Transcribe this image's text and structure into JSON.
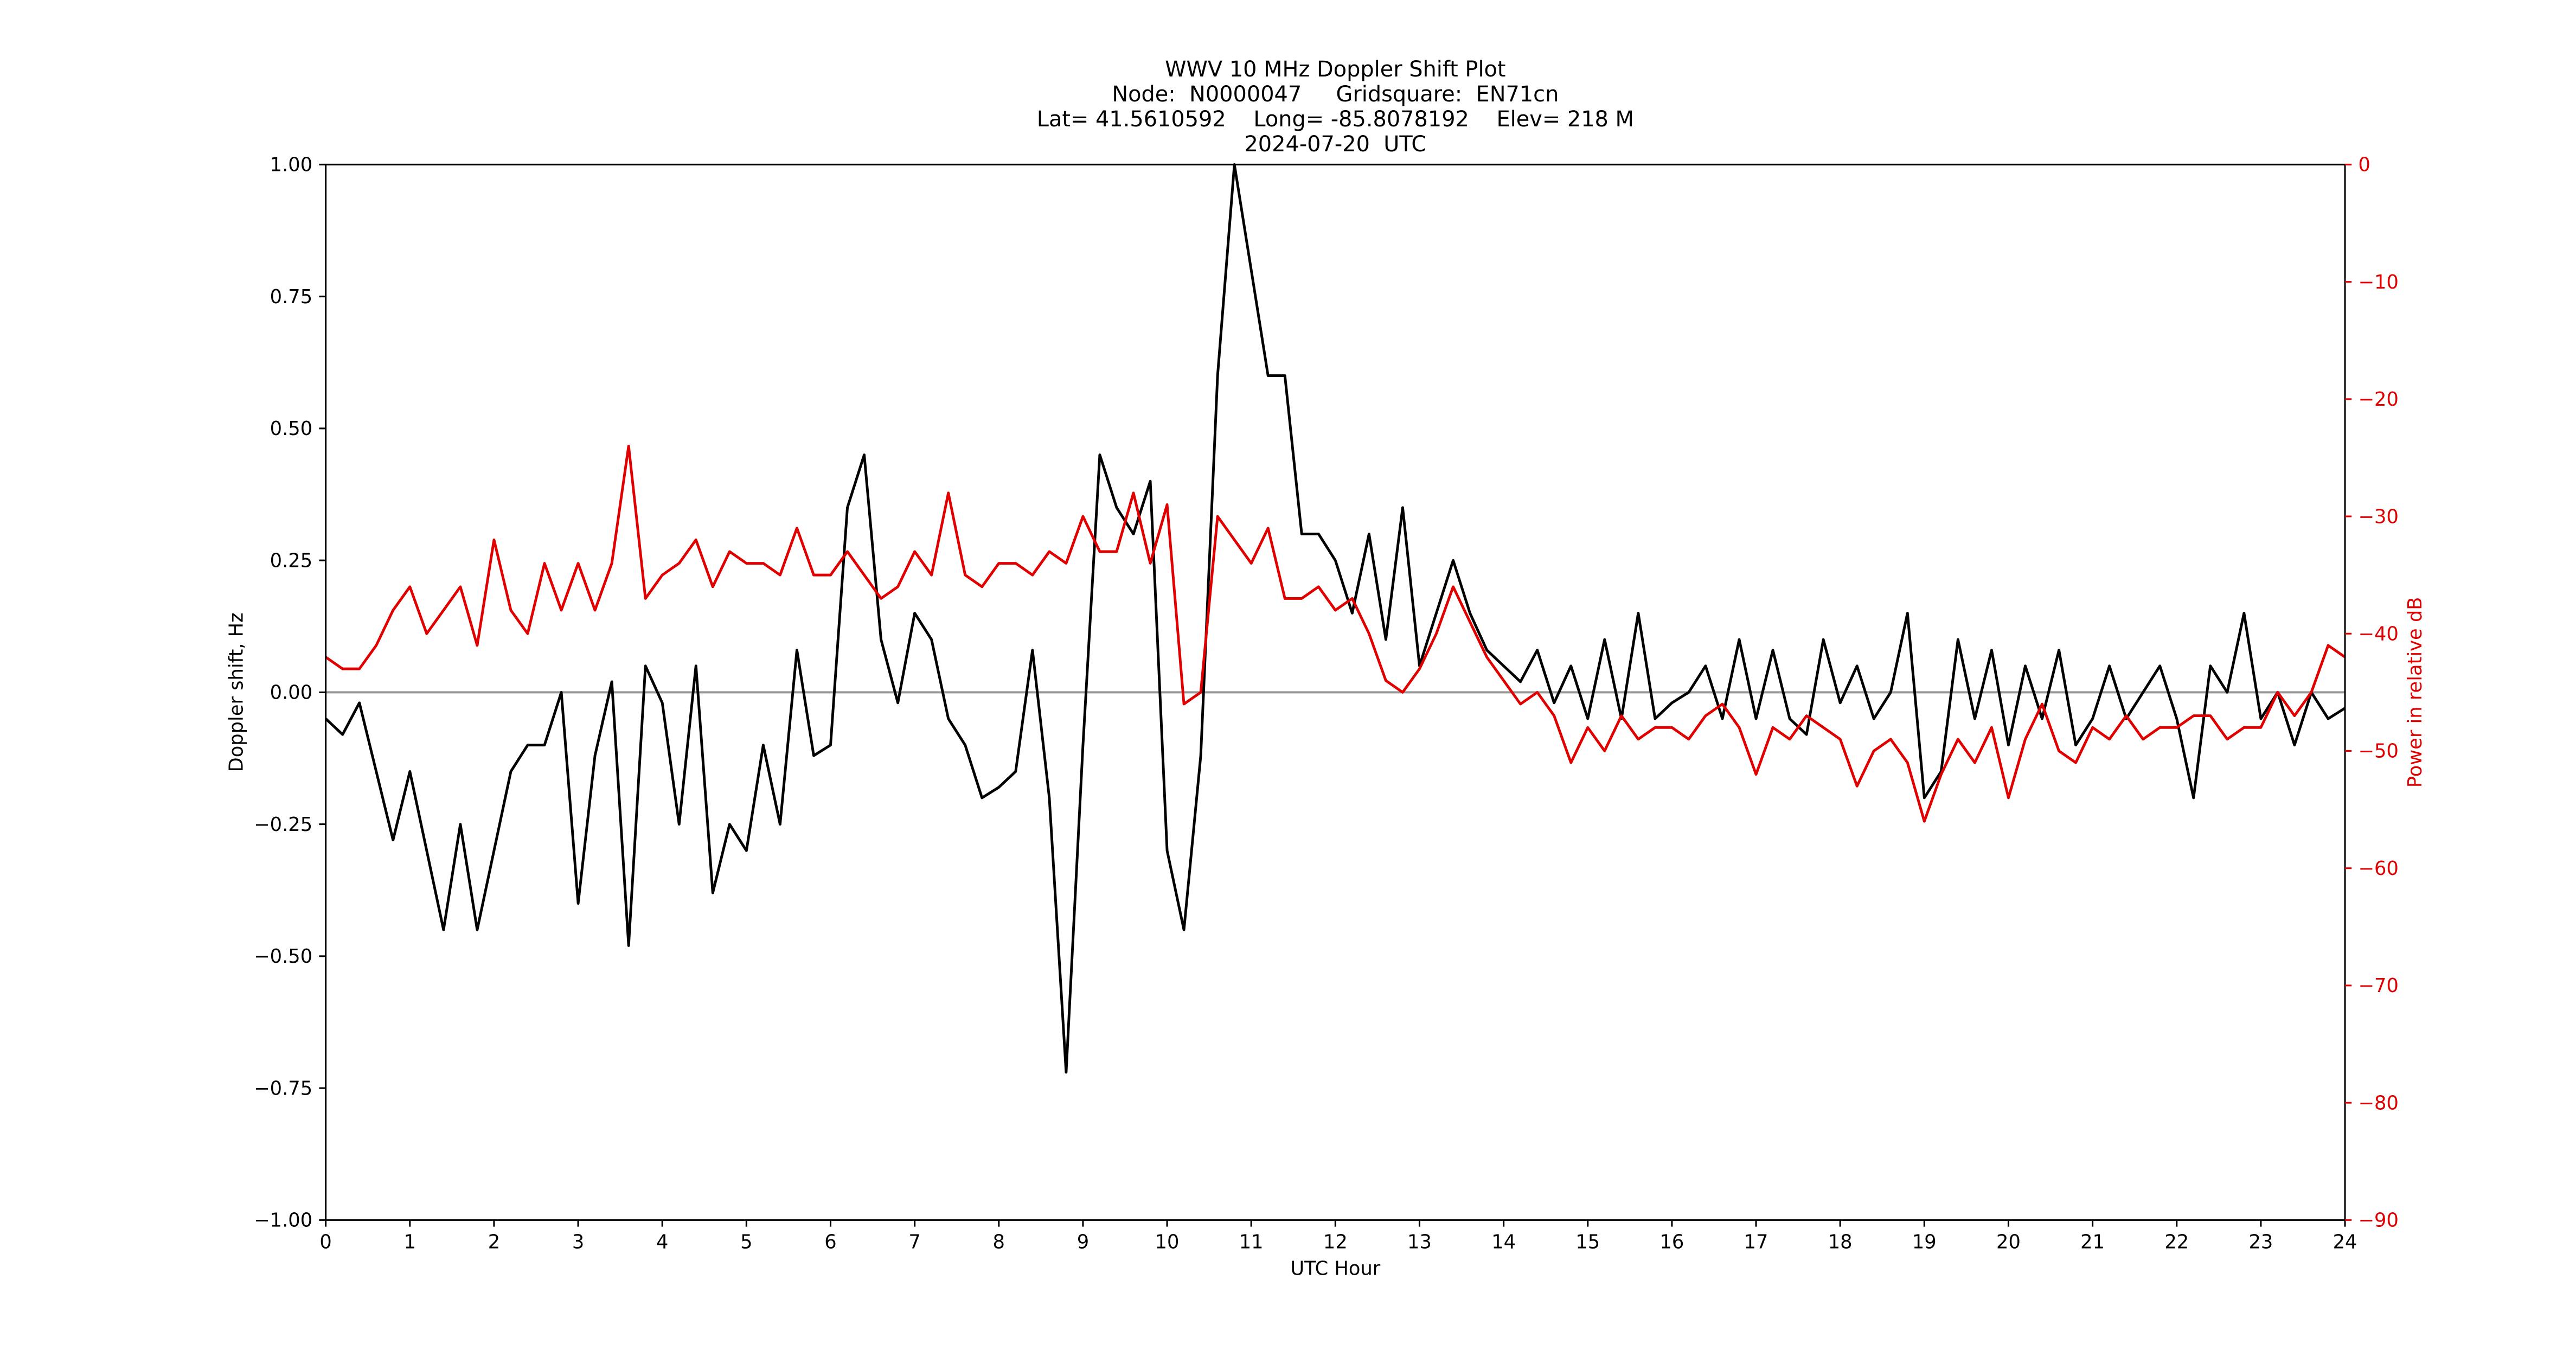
{
  "chart_data": {
    "type": "line",
    "title": [
      "WWV 10 MHz Doppler Shift Plot",
      "Node:  N0000047     Gridsquare:  EN71cn",
      "Lat= 41.5610592    Long= -85.8078192    Elev= 218 M",
      "2024-07-20  UTC"
    ],
    "xlabel": "UTC Hour",
    "ylabel": "Doppler shift, Hz",
    "y2label": "Power in relative dB",
    "xlim": [
      0,
      24
    ],
    "xticks": [
      0,
      1,
      2,
      3,
      4,
      5,
      6,
      7,
      8,
      9,
      10,
      11,
      12,
      13,
      14,
      15,
      16,
      17,
      18,
      19,
      20,
      21,
      22,
      23,
      24
    ],
    "ylim": [
      -1,
      1
    ],
    "yticks": [
      {
        "value": -1,
        "label": "−1.00"
      },
      {
        "value": -0.75,
        "label": "−0.75"
      },
      {
        "value": -0.5,
        "label": "−0.50"
      },
      {
        "value": -0.25,
        "label": "−0.25"
      },
      {
        "value": 0,
        "label": "0.00"
      },
      {
        "value": 0.25,
        "label": "0.25"
      },
      {
        "value": 0.5,
        "label": "0.50"
      },
      {
        "value": 0.75,
        "label": "0.75"
      },
      {
        "value": 1,
        "label": "1.00"
      }
    ],
    "y2lim": [
      -90,
      0
    ],
    "y2ticks": [
      {
        "value": -90,
        "label": "−90"
      },
      {
        "value": -80,
        "label": "−80"
      },
      {
        "value": -70,
        "label": "−70"
      },
      {
        "value": -60,
        "label": "−60"
      },
      {
        "value": -50,
        "label": "−50"
      },
      {
        "value": -40,
        "label": "−40"
      },
      {
        "value": -30,
        "label": "−30"
      },
      {
        "value": -20,
        "label": "−20"
      },
      {
        "value": -10,
        "label": "−10"
      },
      0
    ],
    "y2color": "#e00000",
    "hline": {
      "value": 0,
      "color": "#999999"
    },
    "x": [
      0,
      0.2,
      0.4,
      0.6,
      0.8,
      1,
      1.2,
      1.4,
      1.6,
      1.8,
      2,
      2.2,
      2.4,
      2.6,
      2.8,
      3,
      3.2,
      3.4,
      3.6,
      3.8,
      4,
      4.2,
      4.4,
      4.6,
      4.8,
      5,
      5.2,
      5.4,
      5.6,
      5.8,
      6,
      6.2,
      6.4,
      6.6,
      6.8,
      7,
      7.2,
      7.4,
      7.6,
      7.8,
      8,
      8.2,
      8.4,
      8.6,
      8.8,
      9,
      9.2,
      9.4,
      9.6,
      9.8,
      10,
      10.2,
      10.4,
      10.6,
      10.8,
      11,
      11.2,
      11.4,
      11.6,
      11.8,
      12,
      12.2,
      12.4,
      12.6,
      12.8,
      13,
      13.2,
      13.4,
      13.6,
      13.8,
      14,
      14.2,
      14.4,
      14.6,
      14.8,
      15,
      15.2,
      15.4,
      15.6,
      15.8,
      16,
      16.2,
      16.4,
      16.6,
      16.8,
      17,
      17.2,
      17.4,
      17.6,
      17.8,
      18,
      18.2,
      18.4,
      18.6,
      18.8,
      19,
      19.2,
      19.4,
      19.6,
      19.8,
      20,
      20.2,
      20.4,
      20.6,
      20.8,
      21,
      21.2,
      21.4,
      21.6,
      21.8,
      22,
      22.2,
      22.4,
      22.6,
      22.8,
      23,
      23.2,
      23.4,
      23.6,
      23.8,
      24
    ],
    "series": [
      {
        "color": "#000000",
        "values": [
          -0.05,
          -0.08,
          -0.02,
          -0.15,
          -0.28,
          -0.15,
          -0.3,
          -0.45,
          -0.25,
          -0.45,
          -0.3,
          -0.15,
          -0.1,
          -0.1,
          0.0,
          -0.4,
          -0.12,
          0.02,
          -0.48,
          0.05,
          -0.02,
          -0.25,
          0.05,
          -0.38,
          -0.25,
          -0.3,
          -0.1,
          -0.25,
          0.08,
          -0.12,
          -0.1,
          0.35,
          0.45,
          0.1,
          -0.02,
          0.15,
          0.1,
          -0.05,
          -0.1,
          -0.2,
          -0.18,
          -0.15,
          0.08,
          -0.2,
          -0.72,
          -0.1,
          0.45,
          0.35,
          0.3,
          0.4,
          -0.3,
          -0.45,
          -0.12,
          0.6,
          1.0,
          0.8,
          0.6,
          0.6,
          0.3,
          0.3,
          0.25,
          0.15,
          0.3,
          0.1,
          0.35,
          0.05,
          0.15,
          0.25,
          0.15,
          0.08,
          0.05,
          0.02,
          0.08,
          -0.02,
          0.05,
          -0.05,
          0.1,
          -0.05,
          0.15,
          -0.05,
          -0.02,
          0.0,
          0.05,
          -0.05,
          0.1,
          -0.05,
          0.08,
          -0.05,
          -0.08,
          0.1,
          -0.02,
          0.05,
          -0.05,
          0.0,
          0.15,
          -0.2,
          -0.15,
          0.1,
          -0.05,
          0.08,
          -0.1,
          0.05,
          -0.05,
          0.08,
          -0.1,
          -0.05,
          0.05,
          -0.05,
          0.0,
          0.05,
          -0.05,
          -0.2,
          0.05,
          0.0,
          0.15,
          -0.05,
          0.0,
          -0.1,
          0.0,
          -0.05,
          -0.03
        ]
      },
      {
        "color": "#e00000",
        "axis": "y2",
        "values": [
          -42,
          -43,
          -43,
          -41,
          -38,
          -36,
          -40,
          -38,
          -36,
          -41,
          -32,
          -38,
          -40,
          -34,
          -38,
          -34,
          -38,
          -34,
          -24,
          -37,
          -35,
          -34,
          -32,
          -36,
          -33,
          -34,
          -34,
          -35,
          -31,
          -35,
          -35,
          -33,
          -35,
          -37,
          -36,
          -33,
          -35,
          -28,
          -35,
          -36,
          -34,
          -34,
          -35,
          -33,
          -34,
          -30,
          -33,
          -33,
          -28,
          -34,
          -29,
          -46,
          -45,
          -30,
          -32,
          -34,
          -31,
          -37,
          -37,
          -36,
          -38,
          -37,
          -40,
          -44,
          -45,
          -43,
          -40,
          -36,
          -39,
          -42,
          -44,
          -46,
          -45,
          -47,
          -51,
          -48,
          -50,
          -47,
          -49,
          -48,
          -48,
          -49,
          -47,
          -46,
          -48,
          -52,
          -48,
          -49,
          -47,
          -48,
          -49,
          -53,
          -50,
          -49,
          -51,
          -56,
          -52,
          -49,
          -51,
          -48,
          -54,
          -49,
          -46,
          -50,
          -51,
          -48,
          -49,
          -47,
          -49,
          -48,
          -48,
          -47,
          -47,
          -49,
          -48,
          -48,
          -45,
          -47,
          -45,
          -41,
          -42
        ]
      }
    ]
  }
}
